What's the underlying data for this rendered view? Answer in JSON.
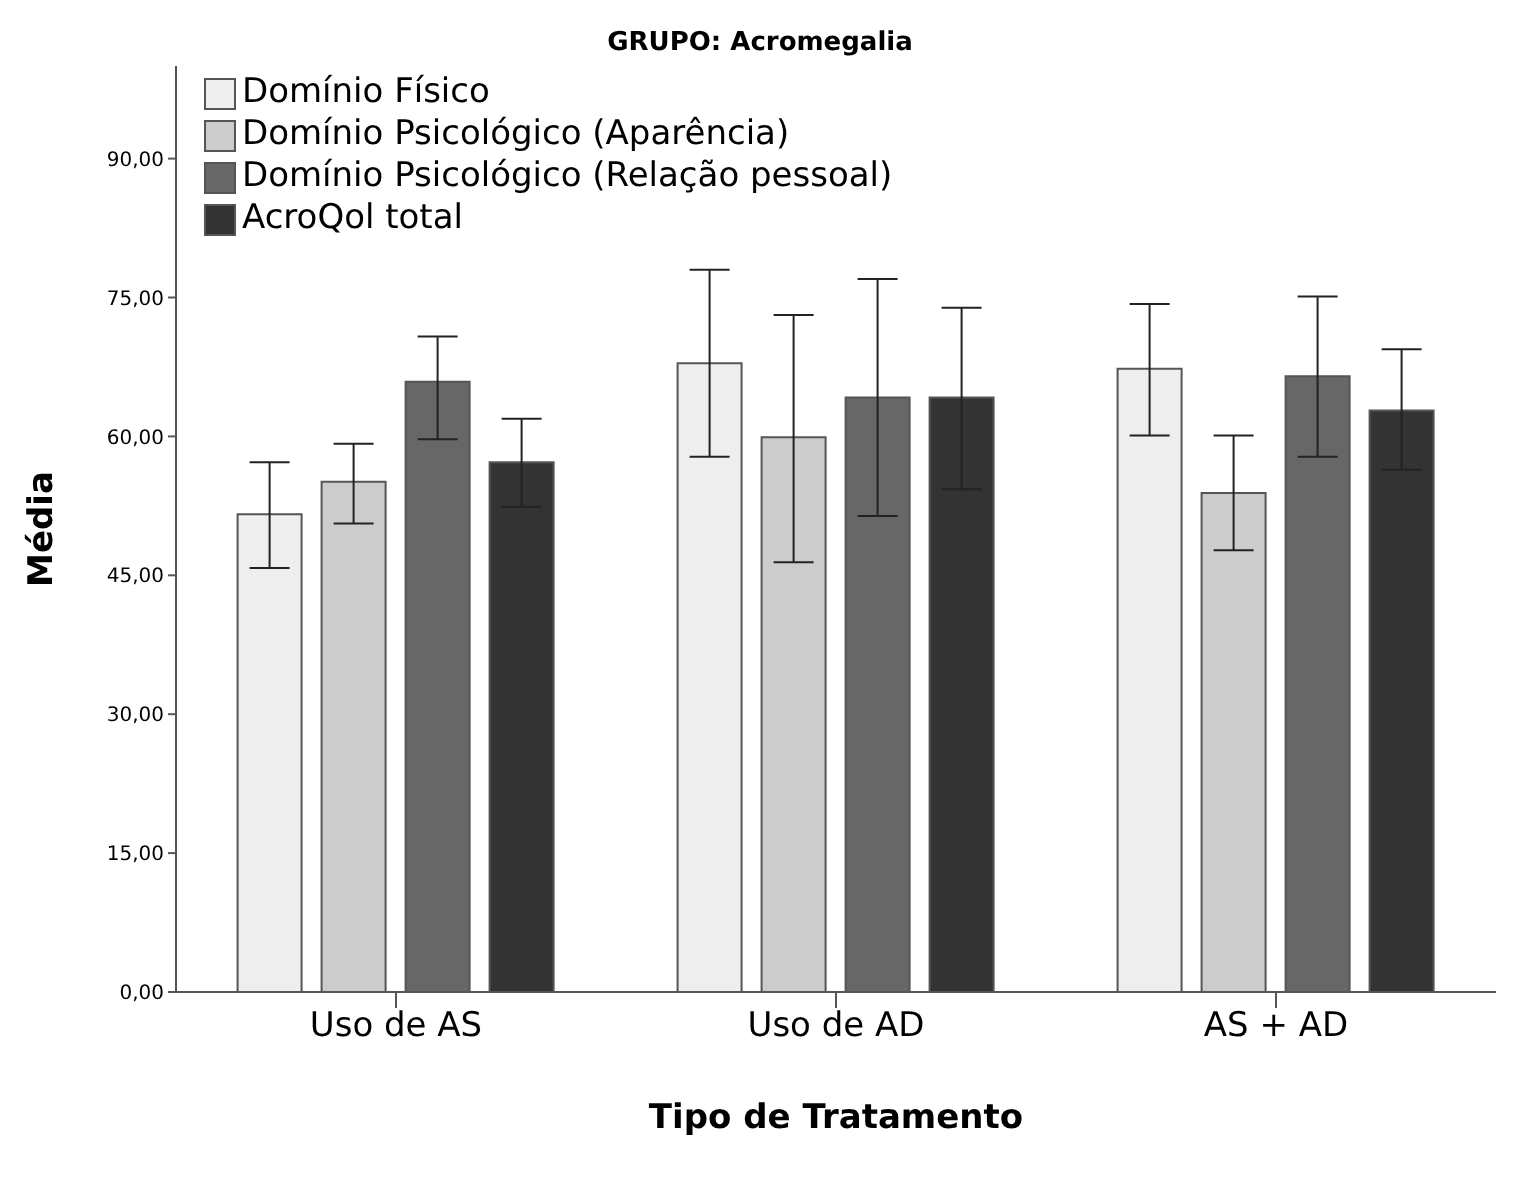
{
  "chart_data": {
    "type": "bar",
    "title": "GRUPO: Acromegalia",
    "xlabel": "Tipo de Tratamento",
    "ylabel": "Média",
    "categories": [
      "Uso de AS",
      "Uso de AD",
      "AS + AD"
    ],
    "series": [
      {
        "name": "Domínio Físico",
        "color": "#eeeeee",
        "values": [
          51.6,
          67.9,
          67.3
        ],
        "errors": [
          [
            45.8,
            57.2
          ],
          [
            57.8,
            78.0
          ],
          [
            60.1,
            74.3
          ]
        ]
      },
      {
        "name": "Domínio Psicológico (Aparência)",
        "color": "#cccccc",
        "values": [
          55.1,
          59.9,
          53.9
        ],
        "errors": [
          [
            50.6,
            59.2
          ],
          [
            46.4,
            73.1
          ],
          [
            47.7,
            60.1
          ]
        ]
      },
      {
        "name": "Domínio Psicológico (Relação pessoal)",
        "color": "#676767",
        "values": [
          65.9,
          64.2,
          66.5
        ],
        "errors": [
          [
            59.7,
            70.8
          ],
          [
            51.4,
            77.0
          ],
          [
            57.8,
            75.1
          ]
        ]
      },
      {
        "name": "AcroQol total",
        "color": "#333333",
        "values": [
          57.2,
          64.2,
          62.8
        ],
        "errors": [
          [
            52.4,
            61.9
          ],
          [
            54.3,
            73.9
          ],
          [
            56.4,
            69.4
          ]
        ]
      }
    ],
    "ylim": [
      0,
      100
    ],
    "yticks": [
      {
        "value": 0,
        "label": "0,00"
      },
      {
        "value": 15,
        "label": "15,00"
      },
      {
        "value": 30,
        "label": "30,00"
      },
      {
        "value": 45,
        "label": "45,00"
      },
      {
        "value": 60,
        "label": "60,00"
      },
      {
        "value": 75,
        "label": "75,00"
      },
      {
        "value": 90,
        "label": "90,00"
      }
    ],
    "grid": false,
    "legend": "top left"
  }
}
